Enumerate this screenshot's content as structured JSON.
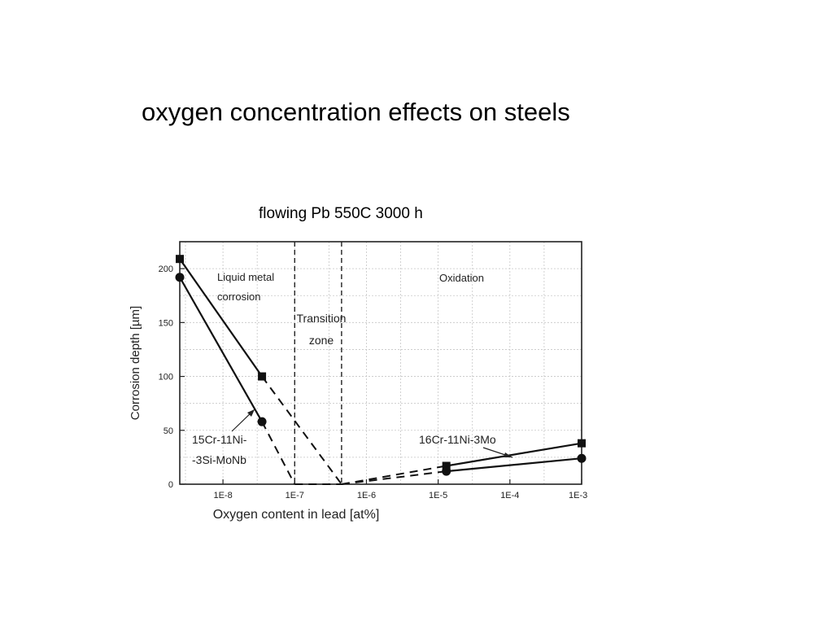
{
  "slide": {
    "title": "oxygen concentration effects on steels",
    "subtitle": "flowing Pb  550C  3000 h"
  },
  "chart_data": {
    "type": "line",
    "xlabel": "Oxygen content in lead [at%]",
    "ylabel": "Corrosion depth [µm]",
    "x_scale": "log",
    "xlim": [
      2.5e-09,
      0.001
    ],
    "ylim": [
      0,
      225
    ],
    "x_ticks": [
      {
        "value": 1e-08,
        "label": "1E-8"
      },
      {
        "value": 1e-07,
        "label": "1E-7"
      },
      {
        "value": 1e-06,
        "label": "1E-6"
      },
      {
        "value": 1e-05,
        "label": "1E-5"
      },
      {
        "value": 0.0001,
        "label": "1E-4"
      },
      {
        "value": 0.001,
        "label": "1E-3"
      }
    ],
    "y_ticks": [
      {
        "value": 0,
        "label": "0"
      },
      {
        "value": 50,
        "label": "50"
      },
      {
        "value": 100,
        "label": "100"
      },
      {
        "value": 150,
        "label": "150"
      },
      {
        "value": 200,
        "label": "200"
      }
    ],
    "grid": true,
    "zone_boundaries": [
      1e-07,
      4.5e-07
    ],
    "zone_labels": [
      {
        "lines": [
          "Liquid metal",
          "corrosion"
        ]
      },
      {
        "lines": [
          "Transition",
          "zone"
        ]
      },
      {
        "lines": [
          "Oxidation"
        ]
      }
    ],
    "series": [
      {
        "marker": "square",
        "points": [
          {
            "x": 2.5e-09,
            "y": 209
          },
          {
            "x": 3.5e-08,
            "y": 100
          },
          {
            "x": 1.3e-05,
            "y": 17
          },
          {
            "x": 0.001,
            "y": 38
          }
        ],
        "dashed": [
          {
            "x": 3.5e-08,
            "y": 100
          },
          {
            "x": 4.5e-07,
            "y": 0
          },
          {
            "x": 1.3e-05,
            "y": 17
          }
        ]
      },
      {
        "marker": "circle",
        "points": [
          {
            "x": 2.5e-09,
            "y": 192
          },
          {
            "x": 3.5e-08,
            "y": 58
          },
          {
            "x": 1.3e-05,
            "y": 12
          },
          {
            "x": 0.001,
            "y": 24
          }
        ],
        "dashed": [
          {
            "x": 3.5e-08,
            "y": 58
          },
          {
            "x": 1e-07,
            "y": 0
          },
          {
            "x": 4.5e-07,
            "y": 0
          },
          {
            "x": 1.3e-05,
            "y": 12
          }
        ]
      }
    ],
    "annotations": [
      {
        "lines": [
          "15Cr-11Ni-",
          "-3Si-MoNb"
        ]
      },
      {
        "lines": [
          "16Cr-11Ni-3Mo"
        ]
      }
    ]
  }
}
